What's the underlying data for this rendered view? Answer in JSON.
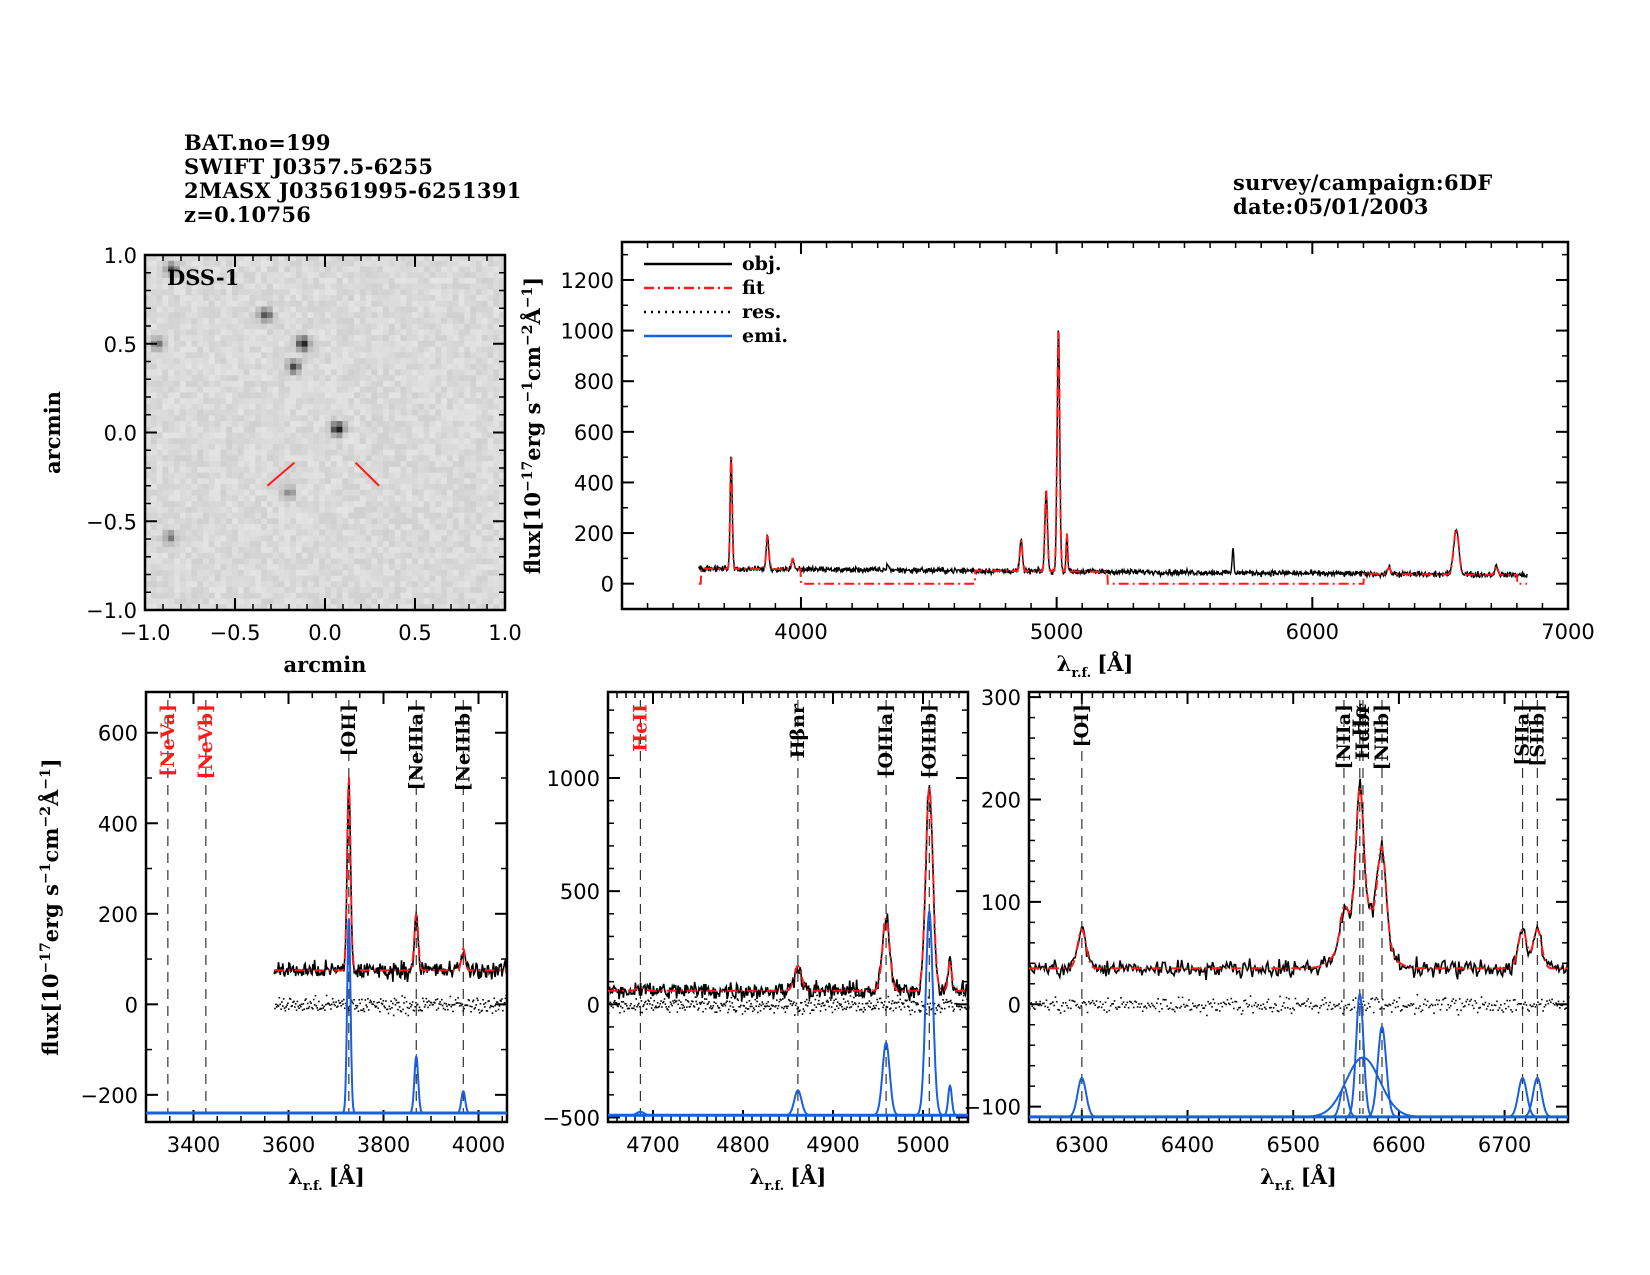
{
  "header": {
    "left_lines": [
      "BAT.no=199",
      "SWIFT J0357.5-6255",
      "2MASX J03561995-6251391",
      "z=0.10756"
    ],
    "right_lines": [
      "survey/campaign:6DF",
      "date:05/01/2003"
    ]
  },
  "colors": {
    "obj": "#000000",
    "fit": "#ff1a1a",
    "res": "#000000",
    "emi": "#1a5fe0",
    "marker": "#ff1a1a",
    "line_label_black": "#000000",
    "line_label_red": "#ff1a1a"
  },
  "chart_data": [
    {
      "id": "image",
      "type": "heatmap",
      "title": "DSS-1",
      "xlabel": "arcmin",
      "ylabel": "arcmin",
      "xlim": [
        -1.0,
        1.0
      ],
      "ylim": [
        -1.0,
        1.0
      ],
      "xticks": [
        "-1.0",
        "-0.5",
        "0.0",
        "0.5",
        "1.0"
      ],
      "yticks": [
        "-1.0",
        "-0.5",
        "0.0",
        "0.5",
        "1.0"
      ],
      "sources": [
        {
          "x": -0.85,
          "y": 0.92,
          "strength": 0.6
        },
        {
          "x": -0.33,
          "y": 0.66,
          "strength": 0.7
        },
        {
          "x": -0.93,
          "y": 0.5,
          "strength": 0.5
        },
        {
          "x": -0.12,
          "y": 0.5,
          "strength": 0.9
        },
        {
          "x": -0.17,
          "y": 0.37,
          "strength": 0.7
        },
        {
          "x": 0.07,
          "y": 0.02,
          "strength": 1.0
        },
        {
          "x": -0.2,
          "y": -0.34,
          "strength": 0.35
        },
        {
          "x": -0.86,
          "y": -0.59,
          "strength": 0.45
        }
      ],
      "marker": "target-crosshair"
    },
    {
      "id": "full",
      "type": "line",
      "xlabel": "λr.f. [Å]",
      "ylabel": "flux[10^-17 erg s^-1 cm^-2 Å^-1]",
      "xlim": [
        3300,
        7000
      ],
      "ylim": [
        -100,
        1350
      ],
      "xticks": [
        "4000",
        "5000",
        "6000",
        "7000"
      ],
      "yticks": [
        "0",
        "200",
        "400",
        "600",
        "800",
        "1000",
        "1200"
      ],
      "legend": {
        "placement": "top-left",
        "entries": [
          "obj.",
          "fit",
          "res.",
          "emi."
        ]
      },
      "continuum": 60,
      "range": [
        3600,
        6840
      ],
      "fit_masked_ranges": [
        [
          4000,
          4680
        ],
        [
          5200,
          6200
        ]
      ],
      "lines": [
        {
          "wave": 3727,
          "amp": 450,
          "sigma": 4
        },
        {
          "wave": 3869,
          "amp": 130,
          "sigma": 5
        },
        {
          "wave": 3968,
          "amp": 40,
          "sigma": 5
        },
        {
          "wave": 4340,
          "amp": 25,
          "sigma": 4
        },
        {
          "wave": 4861,
          "amp": 120,
          "sigma": 5
        },
        {
          "wave": 4959,
          "amp": 320,
          "sigma": 5
        },
        {
          "wave": 5007,
          "amp": 960,
          "sigma": 5
        },
        {
          "wave": 5040,
          "amp": 150,
          "sigma": 3
        },
        {
          "wave": 5690,
          "amp": 100,
          "sigma": 3
        },
        {
          "wave": 6300,
          "amp": 25,
          "sigma": 6
        },
        {
          "wave": 6563,
          "amp": 180,
          "sigma": 10
        },
        {
          "wave": 6720,
          "amp": 35,
          "sigma": 6
        }
      ]
    },
    {
      "id": "panel1",
      "type": "line",
      "xlabel": "λr.f. [Å]",
      "ylabel": "flux[10^-17 erg s^-1 cm^-2 Å^-1]",
      "xlim": [
        3300,
        4060
      ],
      "ylim": [
        -260,
        690
      ],
      "xticks": [
        "3400",
        "3600",
        "3800",
        "4000"
      ],
      "yticks": [
        "-200",
        "0",
        "200",
        "400",
        "600"
      ],
      "data_range": [
        3570,
        4060
      ],
      "continuum": 75,
      "emi_baseline": -240,
      "line_markers": [
        {
          "label": "[NeVa]",
          "wave": 3346,
          "color": "red"
        },
        {
          "label": "[NeVb]",
          "wave": 3426,
          "color": "red"
        },
        {
          "label": "[OII]",
          "wave": 3727,
          "color": "black"
        },
        {
          "label": "[NeIIIa]",
          "wave": 3869,
          "color": "black"
        },
        {
          "label": "[NeIIIb]",
          "wave": 3968,
          "color": "black"
        }
      ],
      "lines": [
        {
          "wave": 3727,
          "amp": 430,
          "sigma": 3.5
        },
        {
          "wave": 3869,
          "amp": 125,
          "sigma": 4
        },
        {
          "wave": 3968,
          "amp": 48,
          "sigma": 4
        }
      ]
    },
    {
      "id": "panel2",
      "type": "line",
      "xlabel": "λr.f. [Å]",
      "ylabel": "",
      "xlim": [
        4650,
        5050
      ],
      "ylim": [
        -520,
        1380
      ],
      "xticks": [
        "4700",
        "4800",
        "4900",
        "5000"
      ],
      "yticks": [
        "-500",
        "0",
        "500",
        "1000"
      ],
      "data_range": [
        4650,
        5050
      ],
      "continuum": 60,
      "emi_baseline": -490,
      "line_markers": [
        {
          "label": "HeII",
          "wave": 4686,
          "color": "red"
        },
        {
          "label": "Hβnr",
          "wave": 4861,
          "color": "black"
        },
        {
          "label": "[OIIIa]",
          "wave": 4959,
          "color": "black"
        },
        {
          "label": "[OIIIb]",
          "wave": 5007,
          "color": "black"
        }
      ],
      "lines": [
        {
          "wave": 4686,
          "amp": 15,
          "sigma": 4
        },
        {
          "wave": 4861,
          "amp": 110,
          "sigma": 4
        },
        {
          "wave": 4959,
          "amp": 320,
          "sigma": 4
        },
        {
          "wave": 5007,
          "amp": 900,
          "sigma": 4
        },
        {
          "wave": 5030,
          "amp": 130,
          "sigma": 2
        }
      ]
    },
    {
      "id": "panel3",
      "type": "line",
      "xlabel": "λr.f. [Å]",
      "ylabel": "",
      "xlim": [
        6250,
        6760
      ],
      "ylim": [
        -115,
        305
      ],
      "xticks": [
        "6300",
        "6400",
        "6500",
        "6600",
        "6700"
      ],
      "yticks": [
        "-100",
        "0",
        "100",
        "200",
        "300"
      ],
      "data_range": [
        6250,
        6760
      ],
      "continuum": 35,
      "emi_baseline": -110,
      "line_markers": [
        {
          "label": "[OI]",
          "wave": 6300,
          "color": "black"
        },
        {
          "label": "[NIIa]",
          "wave": 6548,
          "color": "black"
        },
        {
          "label": "Hα",
          "wave": 6563,
          "color": "black"
        },
        {
          "label": "Hαbr",
          "wave": 6566,
          "color": "black"
        },
        {
          "label": "[NIIb]",
          "wave": 6584,
          "color": "black"
        },
        {
          "label": "[SIIa]",
          "wave": 6717,
          "color": "black"
        },
        {
          "label": "[SIIb]",
          "wave": 6731,
          "color": "black"
        }
      ],
      "lines": [
        {
          "wave": 6300,
          "amp": 38,
          "sigma": 4
        },
        {
          "wave": 6548,
          "amp": 30,
          "sigma": 3.5
        },
        {
          "wave": 6563,
          "amp": 120,
          "sigma": 3.5
        },
        {
          "wave": 6566,
          "amp": 58,
          "sigma": 16
        },
        {
          "wave": 6584,
          "amp": 88,
          "sigma": 4
        },
        {
          "wave": 6717,
          "amp": 38,
          "sigma": 4
        },
        {
          "wave": 6731,
          "amp": 38,
          "sigma": 4
        }
      ]
    }
  ]
}
